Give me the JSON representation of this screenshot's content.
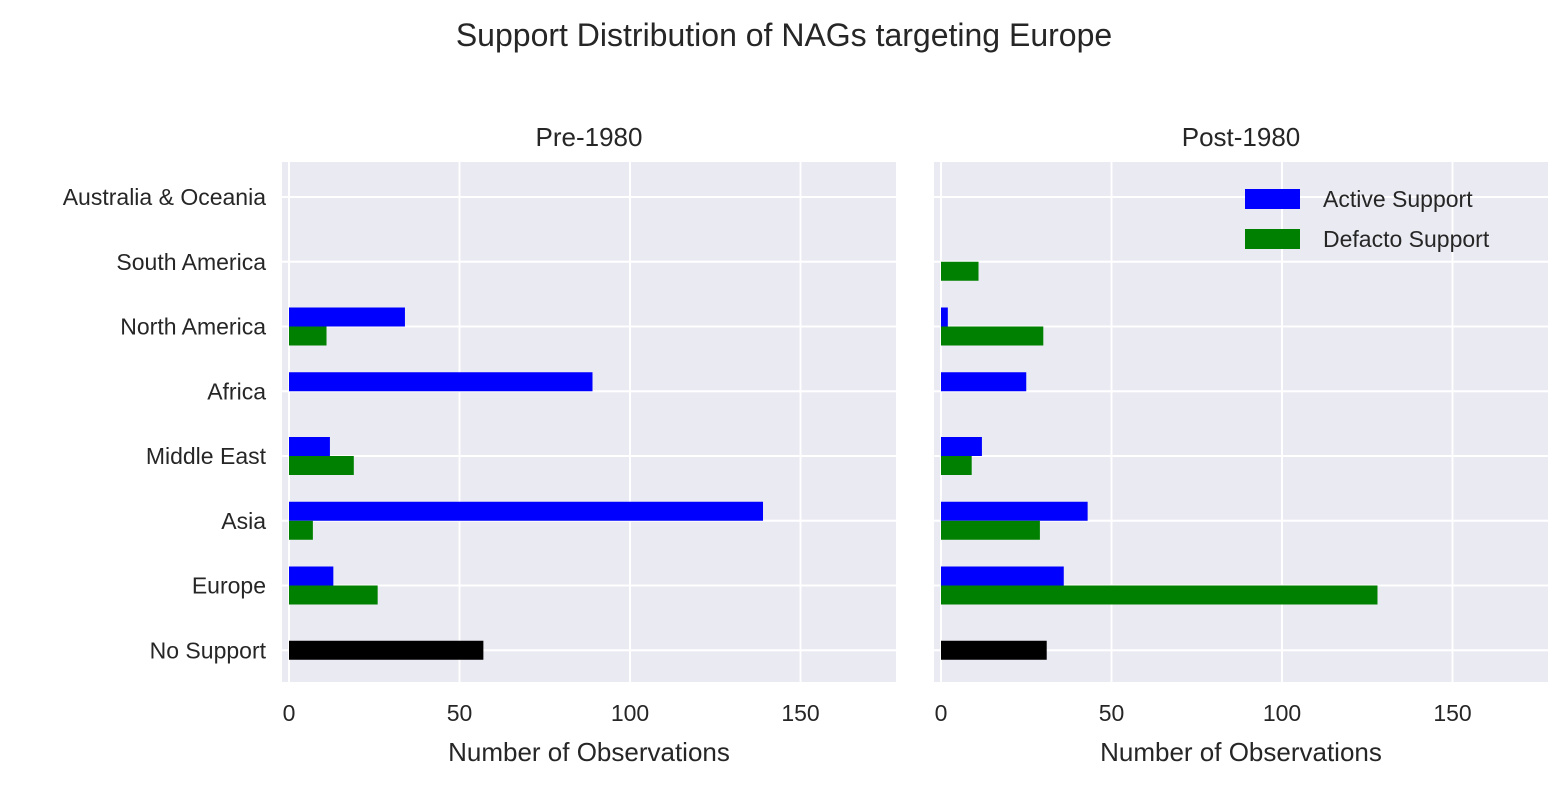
{
  "figure": {
    "suptitle": "Support Distribution of NAGs targeting Europe"
  },
  "chart_data": [
    {
      "type": "bar",
      "orientation": "horizontal",
      "title": "Pre-1980",
      "xlabel": "Number of Observations",
      "ylabel": "",
      "xlim": [
        0,
        178
      ],
      "xticks": [
        0,
        50,
        100,
        150
      ],
      "categories": [
        "No Support",
        "Europe",
        "Asia",
        "Middle East",
        "Africa",
        "North America",
        "South America",
        "Australia & Oceania"
      ],
      "grid": true,
      "series": [
        {
          "name": "Active Support",
          "color": "#0000ff",
          "values": [
            null,
            13,
            139,
            12,
            89,
            34,
            0,
            0
          ]
        },
        {
          "name": "Defacto Support",
          "color": "#008000",
          "values": [
            null,
            26,
            7,
            19,
            0,
            11,
            0,
            0
          ]
        },
        {
          "name": "No Support",
          "color": "#000000",
          "values": [
            57,
            null,
            null,
            null,
            null,
            null,
            null,
            null
          ]
        }
      ]
    },
    {
      "type": "bar",
      "orientation": "horizontal",
      "title": "Post-1980",
      "xlabel": "Number of Observations",
      "ylabel": "",
      "xlim": [
        0,
        178
      ],
      "xticks": [
        0,
        50,
        100,
        150
      ],
      "categories": [
        "No Support",
        "Europe",
        "Asia",
        "Middle East",
        "Africa",
        "North America",
        "South America",
        "Australia & Oceania"
      ],
      "grid": true,
      "legend": "top-right",
      "series": [
        {
          "name": "Active Support",
          "color": "#0000ff",
          "values": [
            null,
            36,
            43,
            12,
            25,
            2,
            0,
            0
          ]
        },
        {
          "name": "Defacto Support",
          "color": "#008000",
          "values": [
            null,
            128,
            29,
            9,
            0,
            30,
            11,
            0
          ]
        },
        {
          "name": "No Support",
          "color": "#000000",
          "values": [
            31,
            null,
            null,
            null,
            null,
            null,
            null,
            null
          ]
        }
      ]
    }
  ]
}
